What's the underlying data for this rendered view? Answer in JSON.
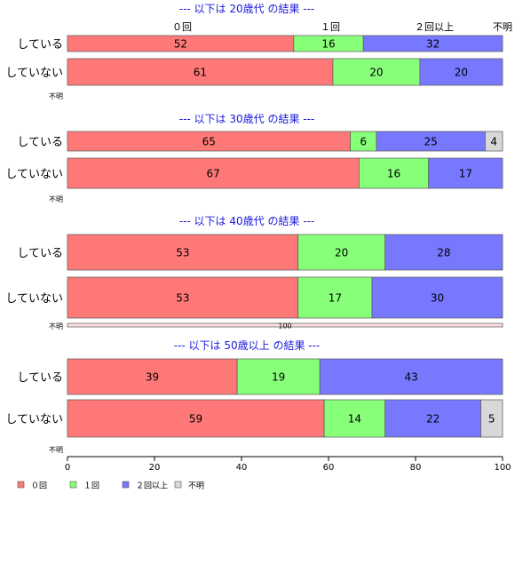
{
  "chart_data": {
    "type": "bar",
    "orientation": "horizontal-stacked",
    "xlim": [
      0,
      100
    ],
    "x_ticks": [
      "0",
      "20",
      "40",
      "60",
      "80",
      "100"
    ],
    "column_headers": [
      "０回",
      "１回",
      "２回以上",
      "不明"
    ],
    "legend": {
      "placement": "bottom-left",
      "items": [
        {
          "label": "０回",
          "color": "#ff7878"
        },
        {
          "label": "１回",
          "color": "#88ff78"
        },
        {
          "label": "２回以上",
          "color": "#7878ff"
        },
        {
          "label": "不明",
          "color": "#d8d8d8"
        }
      ]
    },
    "panels": [
      {
        "title": "--- 以下は 20歳代 の結果 ---",
        "rows": [
          {
            "label": "している",
            "values": [
              52,
              16,
              32,
              0
            ]
          },
          {
            "label": "していない",
            "values": [
              61,
              20,
              20,
              0
            ]
          }
        ],
        "unknown_label": "不明",
        "unknown_value": null
      },
      {
        "title": "--- 以下は 30歳代 の結果 ---",
        "rows": [
          {
            "label": "している",
            "values": [
              65,
              6,
              25,
              4
            ]
          },
          {
            "label": "していない",
            "values": [
              67,
              16,
              17,
              0
            ]
          }
        ],
        "unknown_label": "不明",
        "unknown_value": null
      },
      {
        "title": "--- 以下は 40歳代 の結果 ---",
        "rows": [
          {
            "label": "している",
            "values": [
              53,
              20,
              28,
              0
            ]
          },
          {
            "label": "していない",
            "values": [
              53,
              17,
              30,
              0
            ]
          }
        ],
        "unknown_label": "不明",
        "unknown_value": 100
      },
      {
        "title": "--- 以下は 50歳以上 の結果 ---",
        "rows": [
          {
            "label": "している",
            "values": [
              39,
              19,
              43,
              0
            ]
          },
          {
            "label": "していない",
            "values": [
              59,
              14,
              22,
              5
            ]
          }
        ],
        "unknown_label": "不明",
        "unknown_value": null
      }
    ]
  }
}
